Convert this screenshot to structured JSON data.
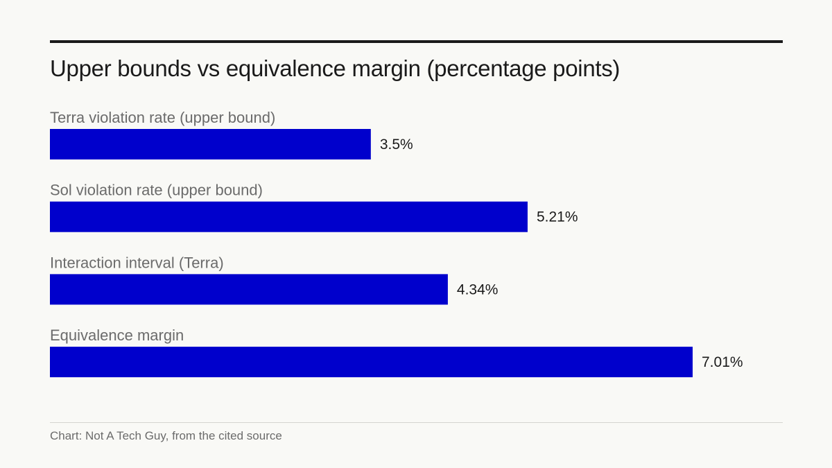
{
  "title": "Upper bounds vs equivalence margin (percentage points)",
  "source": "Chart: Not A Tech Guy, from the cited source",
  "colors": {
    "bar": "#0000cc",
    "background": "#f9f9f6",
    "text": "#1a1a1a",
    "muted_text": "#6b6b6b"
  },
  "chart_data": {
    "type": "bar",
    "orientation": "horizontal",
    "title": "Upper bounds vs equivalence margin (percentage points)",
    "categories": [
      "Terra violation rate (upper bound)",
      "Sol violation rate (upper bound)",
      "Interaction interval (Terra)",
      "Equivalence margin"
    ],
    "values": [
      3.5,
      5.21,
      4.34,
      7.01
    ],
    "value_labels": [
      "3.5%",
      "5.21%",
      "4.34%",
      "7.01%"
    ],
    "xlim": [
      0,
      7.01
    ],
    "grid": false,
    "legend": "none"
  }
}
